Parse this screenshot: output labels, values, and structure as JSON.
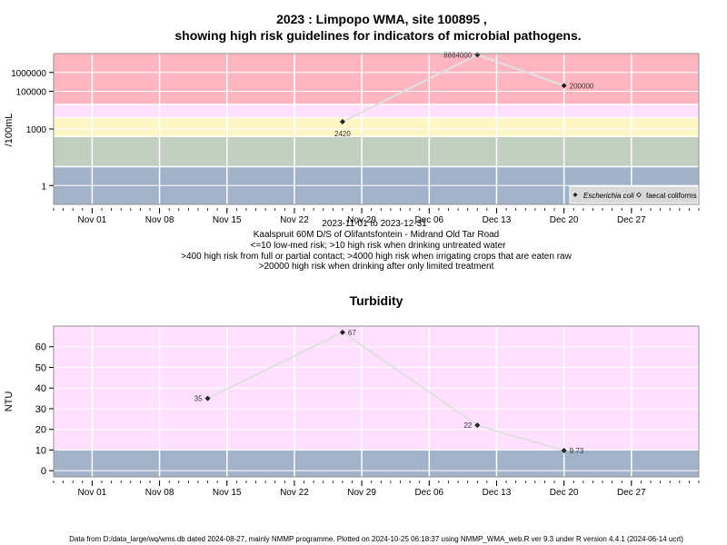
{
  "colors": {
    "red": "#ffb6c1",
    "pink": "#ffe0ff",
    "yellow": "#fff6c6",
    "green": "#c3cfc0",
    "blue": "#a2b3c9",
    "frame": "#909090",
    "line": "#e0e0e0",
    "point": "#222222"
  },
  "x_ticks": [
    "Nov 01",
    "Nov 08",
    "Nov 15",
    "Nov 22",
    "Nov 29",
    "Dec 06",
    "Dec 13",
    "Dec 20",
    "Dec 27"
  ],
  "footer": "Data from D:/data_large/wq/wms.db dated 2024-08-27, mainly NMMP programme. Plotted on 2024-10-25 06:18:37 using NMMP_WMA_web.R ver 9.3 under R version 4.4.1 (2024-06-14 ucrt)",
  "chart_data": [
    {
      "type": "line",
      "title_line1": "2023 : Limpopo WMA, site 100895 ,",
      "title_line2": "showing high risk guidelines for indicators of microbial pathogens.",
      "ylabel": "/100mL",
      "y_scale": "log",
      "ylim": [
        0.1,
        10000000
      ],
      "xlim": [
        "2023-10-28",
        "2024-01-03"
      ],
      "y_ticks": [
        "1",
        "1000",
        "100000",
        "1000000"
      ],
      "y_tick_values": [
        1,
        1000,
        100000,
        1000000
      ],
      "bands": [
        {
          "from": 0.1,
          "to": 10,
          "color": "blue"
        },
        {
          "from": 10,
          "to": 400,
          "color": "green"
        },
        {
          "from": 400,
          "to": 4000,
          "color": "yellow"
        },
        {
          "from": 4000,
          "to": 20000,
          "color": "pink"
        },
        {
          "from": 20000,
          "to": 10000000,
          "color": "red"
        }
      ],
      "series": [
        {
          "name": "Escherichia coli",
          "x": [
            "2023-11-27",
            "2023-12-11",
            "2023-12-20"
          ],
          "values": [
            2420,
            8664000,
            200000
          ],
          "labels": [
            "2420",
            "8664000",
            "200000"
          ]
        }
      ],
      "legend": {
        "placement": "bottom-right",
        "entries": [
          {
            "label": "Escherichia coli",
            "italic": true,
            "marker": "filled-diamond"
          },
          {
            "label": "faecal coliforms",
            "italic": false,
            "marker": "open-diamond"
          }
        ]
      },
      "caption": [
        "2023-11-01 to 2023-12-31",
        "Kaalspruit 60M D/S of Olifantsfontein - Midrand Old Tar Road",
        "<=10 low-med risk; >10 high risk when drinking untreated water",
        ">400 high risk from full or partial contact; >4000 high risk when irrigating crops that are eaten raw",
        ">20000 high risk when drinking after only limited treatment"
      ]
    },
    {
      "type": "line",
      "title": "Turbidity",
      "ylabel": "NTU",
      "y_scale": "linear",
      "ylim": [
        -3,
        70
      ],
      "xlim": [
        "2023-10-28",
        "2024-01-03"
      ],
      "y_ticks": [
        "0",
        "10",
        "20",
        "30",
        "40",
        "50",
        "60"
      ],
      "y_tick_values": [
        0,
        10,
        20,
        30,
        40,
        50,
        60
      ],
      "bands": [
        {
          "from": -3,
          "to": 10,
          "color": "blue"
        },
        {
          "from": 10,
          "to": 70,
          "color": "pink"
        }
      ],
      "series": [
        {
          "x": [
            "2023-11-13",
            "2023-11-27",
            "2023-12-11",
            "2023-12-20"
          ],
          "values": [
            35,
            67,
            22,
            9.73
          ],
          "labels": [
            "35",
            "67",
            "22",
            "9.73"
          ]
        }
      ]
    }
  ]
}
